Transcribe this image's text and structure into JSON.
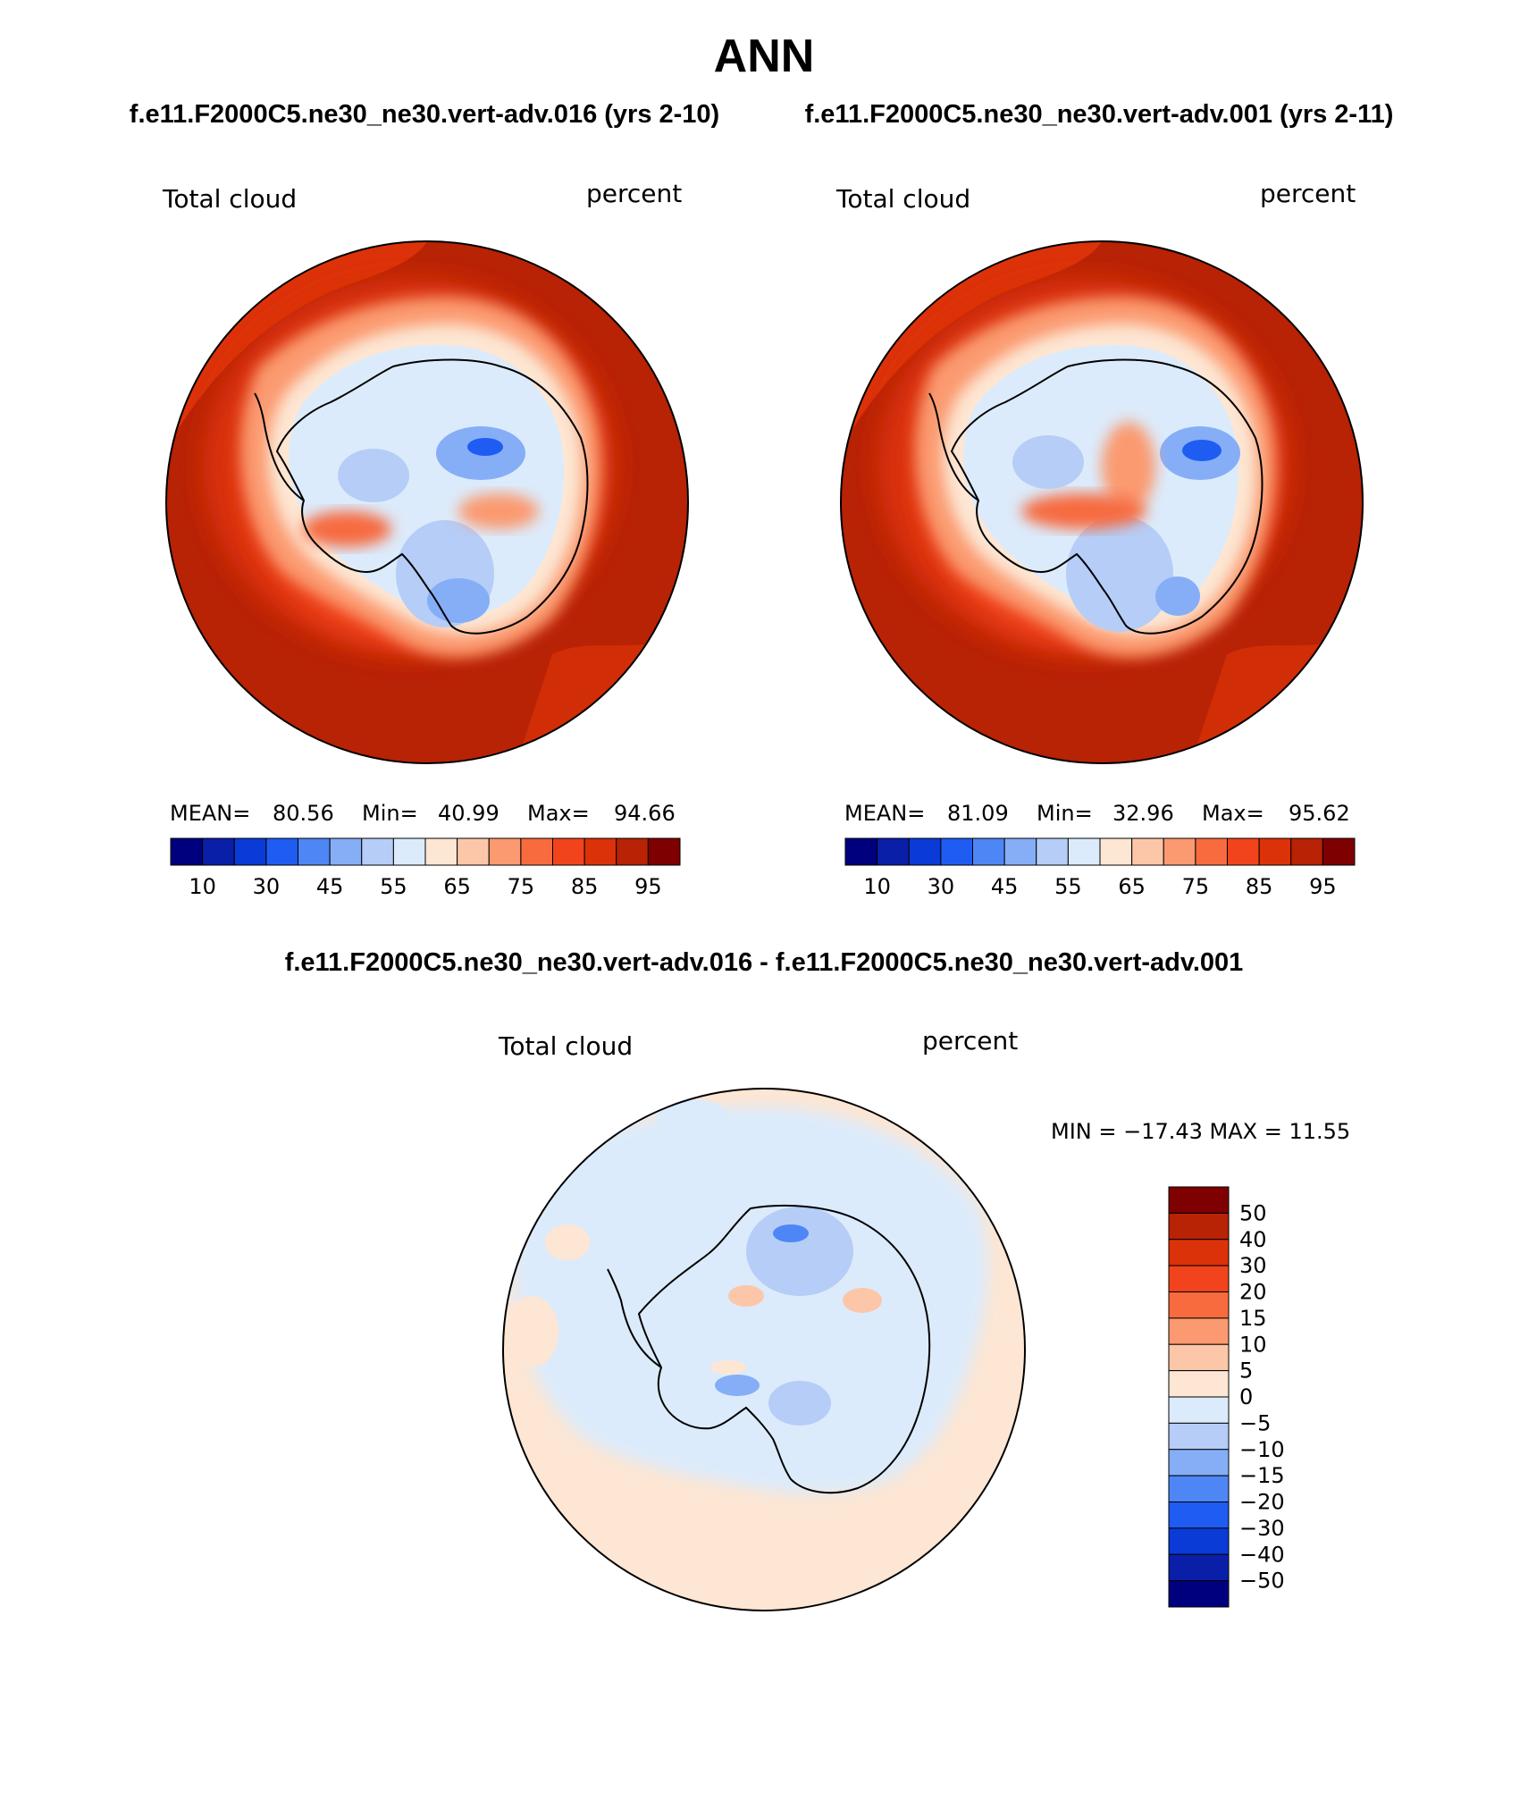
{
  "page": {
    "title": "ANN",
    "subtitle_left": "f.e11.F2000C5.ne30_ne30.vert-adv.016 (yrs 2-10)",
    "subtitle_right": "f.e11.F2000C5.ne30_ne30.vert-adv.001 (yrs 2-11)",
    "diff_title": "f.e11.F2000C5.ne30_ne30.vert-adv.016 - f.e11.F2000C5.ne30_ne30.vert-adv.001"
  },
  "panels": [
    {
      "variable": "Total cloud",
      "units": "percent",
      "stats": {
        "mean_label": "MEAN=",
        "mean": "80.56",
        "min_label": "Min=",
        "min": "40.99",
        "max_label": "Max=",
        "max": "94.66"
      }
    },
    {
      "variable": "Total cloud",
      "units": "percent",
      "stats": {
        "mean_label": "MEAN=",
        "mean": "81.09",
        "min_label": "Min=",
        "min": "32.96",
        "max_label": "Max=",
        "max": "95.62"
      }
    }
  ],
  "diff_panel": {
    "variable": "Total cloud",
    "units": "percent",
    "minmax": "MIN = −17.43 MAX =   11.55"
  },
  "colorbar_main": {
    "colors": [
      "#00007f",
      "#0a1fa8",
      "#0a3bd6",
      "#1f5cf2",
      "#4f86f5",
      "#85aef7",
      "#b5cdf7",
      "#dcebfb",
      "#fde6d3",
      "#fcc6a8",
      "#fb9a70",
      "#f76b3f",
      "#f2441c",
      "#dc3209",
      "#b82205",
      "#7f0000"
    ],
    "labels": [
      "10",
      "30",
      "45",
      "55",
      "65",
      "75",
      "85",
      "95"
    ]
  },
  "colorbar_diff": {
    "colors": [
      "#7f0000",
      "#b82205",
      "#dc3209",
      "#f2441c",
      "#f76b3f",
      "#fb9a70",
      "#fcc6a8",
      "#fde6d3",
      "#dcebfb",
      "#b5cdf7",
      "#85aef7",
      "#4f86f5",
      "#1f5cf2",
      "#0a3bd6",
      "#0a1fa8",
      "#00007f"
    ],
    "labels": [
      "50",
      "40",
      "30",
      "20",
      "15",
      "10",
      "5",
      "0",
      "−5",
      "−10",
      "−15",
      "−20",
      "−30",
      "−40",
      "−50"
    ]
  }
}
